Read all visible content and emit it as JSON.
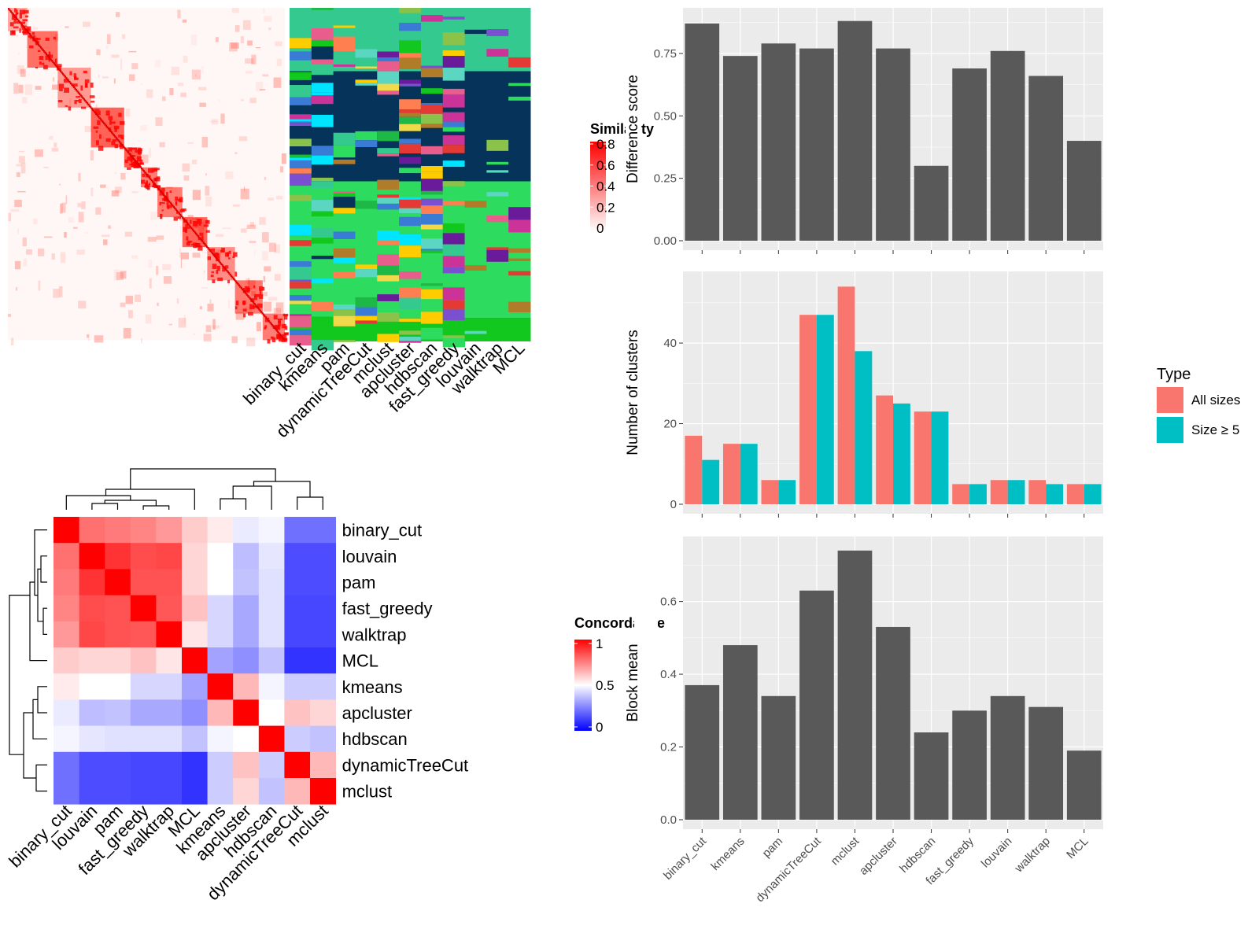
{
  "colors": {
    "panel_bg": "#ebebeb",
    "grid": "#ffffff",
    "bar": "#595959",
    "all_sizes": "#f8766d",
    "size_ge5": "#00bfc4",
    "heat_high": "#ff0000",
    "heat_mid": "#ffffff",
    "heat_low": "#0000ff"
  },
  "similarity_panel": {
    "legend_title": "Similarity",
    "legend_ticks": [
      "0.8",
      "0.6",
      "0.4",
      "0.2",
      "0"
    ],
    "methods": [
      "binary_cut",
      "kmeans",
      "pam",
      "dynamicTreeCut",
      "mclust",
      "apcluster",
      "hdbscan",
      "fast_greedy",
      "louvain",
      "walktrap",
      "MCL"
    ]
  },
  "concordance_heatmap": {
    "legend_title": "Concordance",
    "legend_ticks": [
      "1",
      "0.5",
      "0"
    ],
    "methods": [
      "binary_cut",
      "louvain",
      "pam",
      "fast_greedy",
      "walktrap",
      "MCL",
      "kmeans",
      "apcluster",
      "hdbscan",
      "dynamicTreeCut",
      "mclust"
    ],
    "matrix": [
      [
        1.0,
        0.78,
        0.76,
        0.74,
        0.7,
        0.6,
        0.54,
        0.46,
        0.48,
        0.22,
        0.22
      ],
      [
        0.78,
        1.0,
        0.9,
        0.85,
        0.86,
        0.58,
        0.5,
        0.37,
        0.45,
        0.15,
        0.15
      ],
      [
        0.76,
        0.9,
        1.0,
        0.84,
        0.84,
        0.58,
        0.5,
        0.38,
        0.44,
        0.15,
        0.15
      ],
      [
        0.74,
        0.85,
        0.84,
        1.0,
        0.83,
        0.62,
        0.42,
        0.33,
        0.44,
        0.14,
        0.14
      ],
      [
        0.7,
        0.86,
        0.84,
        0.83,
        1.0,
        0.55,
        0.42,
        0.33,
        0.44,
        0.14,
        0.14
      ],
      [
        0.6,
        0.58,
        0.58,
        0.62,
        0.55,
        1.0,
        0.32,
        0.28,
        0.38,
        0.1,
        0.1
      ],
      [
        0.54,
        0.5,
        0.5,
        0.42,
        0.42,
        0.32,
        1.0,
        0.64,
        0.48,
        0.4,
        0.4
      ],
      [
        0.46,
        0.37,
        0.38,
        0.33,
        0.33,
        0.28,
        0.64,
        1.0,
        0.5,
        0.62,
        0.58
      ],
      [
        0.48,
        0.45,
        0.44,
        0.44,
        0.44,
        0.38,
        0.48,
        0.5,
        1.0,
        0.4,
        0.38
      ],
      [
        0.22,
        0.15,
        0.15,
        0.14,
        0.14,
        0.1,
        0.4,
        0.62,
        0.4,
        1.0,
        0.64
      ],
      [
        0.22,
        0.15,
        0.15,
        0.14,
        0.14,
        0.1,
        0.4,
        0.58,
        0.38,
        0.64,
        1.0
      ]
    ]
  },
  "chart_data": [
    {
      "type": "bar",
      "categories": [
        "binary_cut",
        "kmeans",
        "pam",
        "dynamicTreeCut",
        "mclust",
        "apcluster",
        "hdbscan",
        "fast_greedy",
        "louvain",
        "walktrap",
        "MCL"
      ],
      "values": [
        0.87,
        0.74,
        0.79,
        0.77,
        0.88,
        0.77,
        0.3,
        0.69,
        0.76,
        0.66,
        0.4
      ],
      "ylabel": "Difference score",
      "ylim": [
        0,
        0.92
      ],
      "yticks": [
        "0.00",
        "0.25",
        "0.50",
        "0.75"
      ],
      "grid": true
    },
    {
      "type": "bar",
      "categories": [
        "binary_cut",
        "kmeans",
        "pam",
        "dynamicTreeCut",
        "mclust",
        "apcluster",
        "hdbscan",
        "fast_greedy",
        "louvain",
        "walktrap",
        "MCL"
      ],
      "series": [
        {
          "name": "All sizes",
          "values": [
            17,
            15,
            6,
            47,
            54,
            27,
            23,
            5,
            6,
            6,
            5
          ]
        },
        {
          "name": "Size ≥ 5",
          "values": [
            11,
            15,
            6,
            47,
            38,
            25,
            23,
            5,
            6,
            5,
            5
          ]
        }
      ],
      "ylabel": "Number of clusters",
      "ylim": [
        0,
        57
      ],
      "yticks": [
        "0",
        "20",
        "40"
      ],
      "legend_title": "Type",
      "legend_position": "right",
      "grid": true
    },
    {
      "type": "bar",
      "categories": [
        "binary_cut",
        "kmeans",
        "pam",
        "dynamicTreeCut",
        "mclust",
        "apcluster",
        "hdbscan",
        "fast_greedy",
        "louvain",
        "walktrap",
        "MCL"
      ],
      "values": [
        0.37,
        0.48,
        0.34,
        0.63,
        0.74,
        0.53,
        0.24,
        0.3,
        0.34,
        0.31,
        0.19
      ],
      "ylabel": "Block mean",
      "ylim": [
        0,
        0.77
      ],
      "yticks": [
        "0.0",
        "0.2",
        "0.4",
        "0.6"
      ],
      "grid": true
    }
  ]
}
